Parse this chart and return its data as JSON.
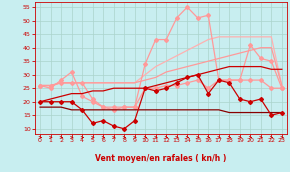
{
  "x": [
    0,
    1,
    2,
    3,
    4,
    5,
    6,
    7,
    8,
    9,
    10,
    11,
    12,
    13,
    14,
    15,
    16,
    17,
    18,
    19,
    20,
    21,
    22,
    23
  ],
  "background_color": "#c8eef0",
  "grid_color": "#aad4cc",
  "xlabel": "Vent moyen/en rafales ( kn/h )",
  "xlabel_color": "#cc0000",
  "tick_color": "#cc0000",
  "ylim": [
    8,
    57
  ],
  "yticks": [
    10,
    15,
    20,
    25,
    30,
    35,
    40,
    45,
    50,
    55
  ],
  "line_dark_flat": {
    "values": [
      18,
      18,
      18,
      17,
      17,
      17,
      17,
      17,
      17,
      17,
      17,
      17,
      17,
      17,
      17,
      17,
      17,
      17,
      16,
      16,
      16,
      16,
      16,
      16
    ],
    "color": "#880000",
    "lw": 0.9
  },
  "line_dark_marker": {
    "values": [
      20,
      20,
      20,
      20,
      17,
      12,
      13,
      11,
      10,
      13,
      25,
      24,
      25,
      27,
      29,
      30,
      23,
      28,
      27,
      21,
      20,
      21,
      15,
      16
    ],
    "color": "#cc0000",
    "marker": "D",
    "ms": 2.0,
    "lw": 0.9
  },
  "line_dark_up": {
    "values": [
      20,
      21,
      22,
      23,
      23,
      24,
      24,
      25,
      25,
      25,
      25,
      26,
      27,
      28,
      29,
      30,
      31,
      32,
      33,
      33,
      33,
      33,
      32,
      32
    ],
    "color": "#cc0000",
    "lw": 0.9
  },
  "line_pink_marker1": {
    "values": [
      26,
      25,
      28,
      31,
      22,
      20,
      18,
      17,
      18,
      18,
      25,
      25,
      26,
      26,
      27,
      28,
      25,
      28,
      28,
      28,
      28,
      28,
      25,
      25
    ],
    "color": "#ff9999",
    "marker": "D",
    "ms": 2.0,
    "lw": 0.9
  },
  "line_pink_flat1": {
    "values": [
      26,
      26,
      27,
      27,
      27,
      27,
      27,
      27,
      27,
      27,
      28,
      29,
      31,
      32,
      33,
      34,
      35,
      36,
      37,
      38,
      39,
      40,
      40,
      26
    ],
    "color": "#ff9999",
    "lw": 0.9
  },
  "line_pink_flat2": {
    "values": [
      26,
      26,
      27,
      27,
      27,
      27,
      27,
      27,
      27,
      27,
      30,
      33,
      35,
      37,
      39,
      41,
      43,
      44,
      44,
      44,
      44,
      44,
      44,
      26
    ],
    "color": "#ffb0b0",
    "lw": 0.9
  },
  "line_pink_marker2": {
    "values": [
      26,
      26,
      27,
      27,
      27,
      21,
      18,
      18,
      18,
      18,
      34,
      43,
      43,
      51,
      55,
      51,
      52,
      28,
      28,
      28,
      41,
      36,
      35,
      25
    ],
    "color": "#ff9999",
    "marker": "D",
    "ms": 2.0,
    "lw": 0.9
  },
  "wind_angles": [
    90,
    90,
    90,
    90,
    135,
    90,
    90,
    135,
    90,
    135,
    180,
    180,
    180,
    180,
    180,
    180,
    180,
    180,
    180,
    180,
    180,
    180,
    180,
    180
  ]
}
